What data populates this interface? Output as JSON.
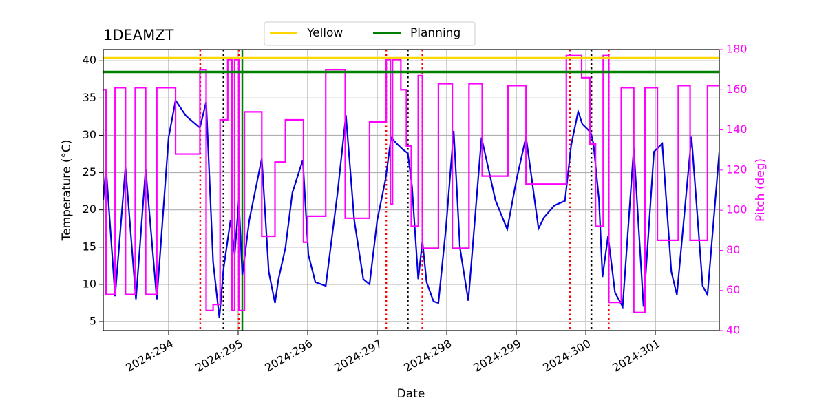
{
  "chart_data": {
    "type": "line",
    "title": "1DEAMZT",
    "xlabel": "Date",
    "ylabel": "Temperature (°C)",
    "y2label": "Pitch (deg)",
    "xlim": [
      293.06,
      301.92
    ],
    "ylim": [
      3.8,
      41.5
    ],
    "y2lim": [
      40,
      180
    ],
    "xticks": [
      {
        "value": 294,
        "label": "2024:294"
      },
      {
        "value": 295,
        "label": "2024:295"
      },
      {
        "value": 296,
        "label": "2024:296"
      },
      {
        "value": 297,
        "label": "2024:297"
      },
      {
        "value": 298,
        "label": "2024:298"
      },
      {
        "value": 299,
        "label": "2024:299"
      },
      {
        "value": 300,
        "label": "2024:300"
      },
      {
        "value": 301,
        "label": "2024:301"
      }
    ],
    "yticks": [
      5,
      10,
      15,
      20,
      25,
      30,
      35,
      40
    ],
    "y2ticks": [
      40,
      60,
      80,
      100,
      120,
      140,
      160,
      180
    ],
    "grid": true,
    "legend": "top",
    "series": [
      {
        "color": "#0000dd",
        "x": [
          293.06,
          293.1,
          293.23,
          293.38,
          293.53,
          293.67,
          293.83,
          294.0,
          294.1,
          294.25,
          294.45,
          294.54,
          294.64,
          294.73,
          294.79,
          294.89,
          294.95,
          295.01,
          295.06,
          295.16,
          295.34,
          295.44,
          295.53,
          295.58,
          295.68,
          295.78,
          295.93,
          296.01,
          296.11,
          296.26,
          296.43,
          296.55,
          296.67,
          296.8,
          296.89,
          297.0,
          297.12,
          297.2,
          297.28,
          297.37,
          297.44,
          297.5,
          297.59,
          297.65,
          297.71,
          297.81,
          297.88,
          297.99,
          298.1,
          298.19,
          298.31,
          298.5,
          298.7,
          298.87,
          299.0,
          299.14,
          299.32,
          299.4,
          299.55,
          299.7,
          299.79,
          299.89,
          299.95,
          300.07,
          300.11,
          300.19,
          300.24,
          300.32,
          300.42,
          300.53,
          300.69,
          300.83,
          300.98,
          301.1,
          301.23,
          301.31,
          301.52,
          301.68,
          301.75,
          301.92
        ],
        "values": [
          21.3,
          25.7,
          8.4,
          25.8,
          8.0,
          25.5,
          8.0,
          29.7,
          34.7,
          32.6,
          31.0,
          34.5,
          13.0,
          5.5,
          12.1,
          18.6,
          14.0,
          21.3,
          11.2,
          18.6,
          26.9,
          11.7,
          7.5,
          10.7,
          14.9,
          22.3,
          26.7,
          14.0,
          10.3,
          9.8,
          22.3,
          32.7,
          18.6,
          10.7,
          10.0,
          18.6,
          24.1,
          29.7,
          28.9,
          28.1,
          27.6,
          23.2,
          10.7,
          15.8,
          10.3,
          7.7,
          7.5,
          17.7,
          30.6,
          14.9,
          7.8,
          29.7,
          21.3,
          17.4,
          23.9,
          29.8,
          17.5,
          19.0,
          20.6,
          21.2,
          28.7,
          33.2,
          31.5,
          30.4,
          28.9,
          21.3,
          11.0,
          16.5,
          8.9,
          7.0,
          28.3,
          7.0,
          27.8,
          28.9,
          11.7,
          8.6,
          29.8,
          9.8,
          8.6,
          27.8
        ]
      },
      {
        "color": "#ff00ff",
        "axis": "y2",
        "step": true,
        "x": [
          293.06,
          293.1,
          293.23,
          293.38,
          293.52,
          293.67,
          293.83,
          294.1,
          294.45,
          294.54,
          294.64,
          294.74,
          294.85,
          294.91,
          294.95,
          295.01,
          295.09,
          295.34,
          295.53,
          295.68,
          295.94,
          296.0,
          296.26,
          296.54,
          296.89,
          297.13,
          297.19,
          297.22,
          297.34,
          297.42,
          297.49,
          297.59,
          297.65,
          297.88,
          298.08,
          298.32,
          298.51,
          298.88,
          299.14,
          299.72,
          299.94,
          300.06,
          300.14,
          300.25,
          300.33,
          300.51,
          300.69,
          300.85,
          301.03,
          301.33,
          301.5,
          301.75,
          301.92
        ],
        "values": [
          160,
          58,
          161,
          58,
          161,
          58,
          161,
          128,
          170,
          50,
          53,
          145,
          175,
          50,
          175,
          50,
          149,
          87,
          124,
          145,
          84,
          97,
          170,
          96,
          144,
          175,
          103,
          175,
          160,
          132,
          92,
          167,
          81,
          163,
          81,
          163,
          117,
          162,
          113,
          177,
          166,
          133,
          92,
          177,
          54,
          161,
          49,
          161,
          85,
          162,
          85,
          162,
          162
        ]
      }
    ],
    "hlines": [
      {
        "name": "Yellow",
        "color": "#ffd700",
        "value": 40.4
      },
      {
        "name": "Planning",
        "color": "#008000",
        "value": 38.5
      }
    ],
    "vlines": [
      {
        "color": "#ff0000",
        "style": "dotted",
        "x": [
          294.455,
          295.01,
          297.13,
          297.65,
          299.77,
          300.33
        ]
      },
      {
        "color": "#000000",
        "style": "dotted",
        "x": [
          294.79,
          297.44,
          300.08
        ]
      },
      {
        "color": "#008000",
        "style": "solid",
        "x": [
          295.06
        ]
      }
    ]
  }
}
